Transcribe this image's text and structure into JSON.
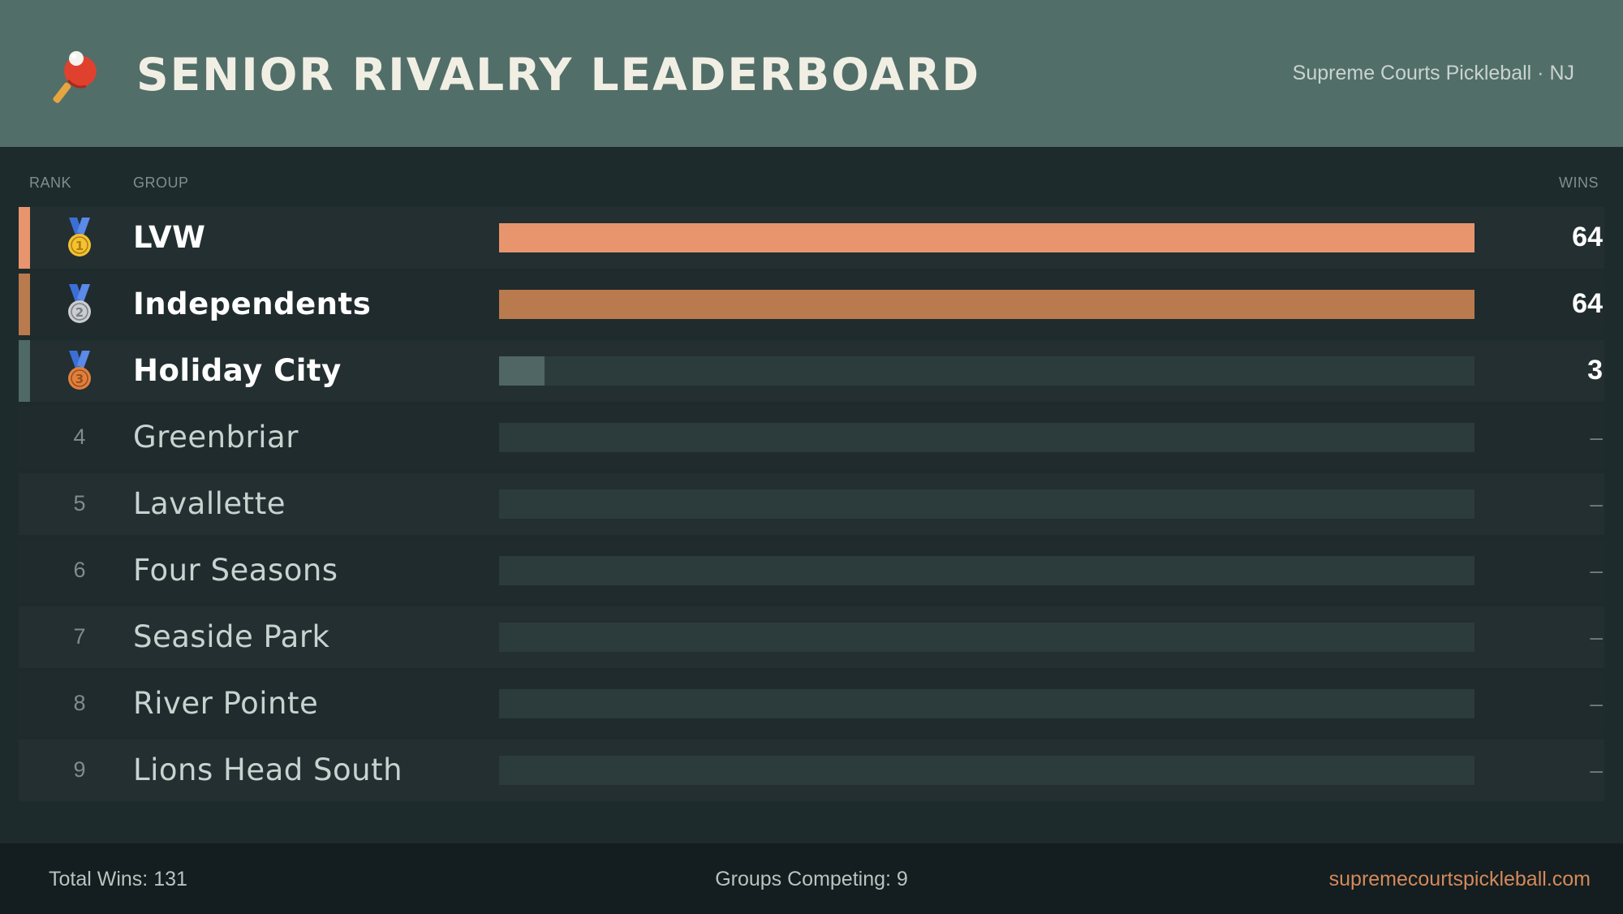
{
  "header": {
    "title": "SENIOR RIVALRY LEADERBOARD",
    "subtitle": "Supreme Courts Pickleball · NJ",
    "logo_icon": "paddle-ball-icon"
  },
  "columns": {
    "rank": "RANK",
    "group": "GROUP",
    "wins": "WINS"
  },
  "colors": {
    "gold": "#e8956e",
    "silver": "#b97a4d",
    "bronze": "#4e6966",
    "track": "#2c3c3d"
  },
  "chart_data": {
    "type": "bar",
    "categories": [
      "LVW",
      "Independents",
      "Holiday City",
      "Greenbriar",
      "Lavallette",
      "Four Seasons",
      "Seaside Park",
      "River Pointe",
      "Lions Head South"
    ],
    "values": [
      64,
      64,
      3,
      0,
      0,
      0,
      0,
      0,
      0
    ],
    "xlim": [
      0,
      64
    ]
  },
  "rows": [
    {
      "rank": "1",
      "medal": "gold-medal-icon",
      "name": "LVW",
      "wins": "64",
      "value": 64
    },
    {
      "rank": "2",
      "medal": "silver-medal-icon",
      "name": "Independents",
      "wins": "64",
      "value": 64
    },
    {
      "rank": "3",
      "medal": "bronze-medal-icon",
      "name": "Holiday City",
      "wins": "3",
      "value": 3
    },
    {
      "rank": "4",
      "name": "Greenbriar",
      "wins": "–",
      "value": 0
    },
    {
      "rank": "5",
      "name": "Lavallette",
      "wins": "–",
      "value": 0
    },
    {
      "rank": "6",
      "name": "Four Seasons",
      "wins": "–",
      "value": 0
    },
    {
      "rank": "7",
      "name": "Seaside Park",
      "wins": "–",
      "value": 0
    },
    {
      "rank": "8",
      "name": "River Pointe",
      "wins": "–",
      "value": 0
    },
    {
      "rank": "9",
      "name": "Lions Head South",
      "wins": "–",
      "value": 0
    }
  ],
  "footer": {
    "total_wins": "Total Wins: 131",
    "groups_competing": "Groups Competing: 9",
    "website": "supremecourtspickleball.com"
  }
}
